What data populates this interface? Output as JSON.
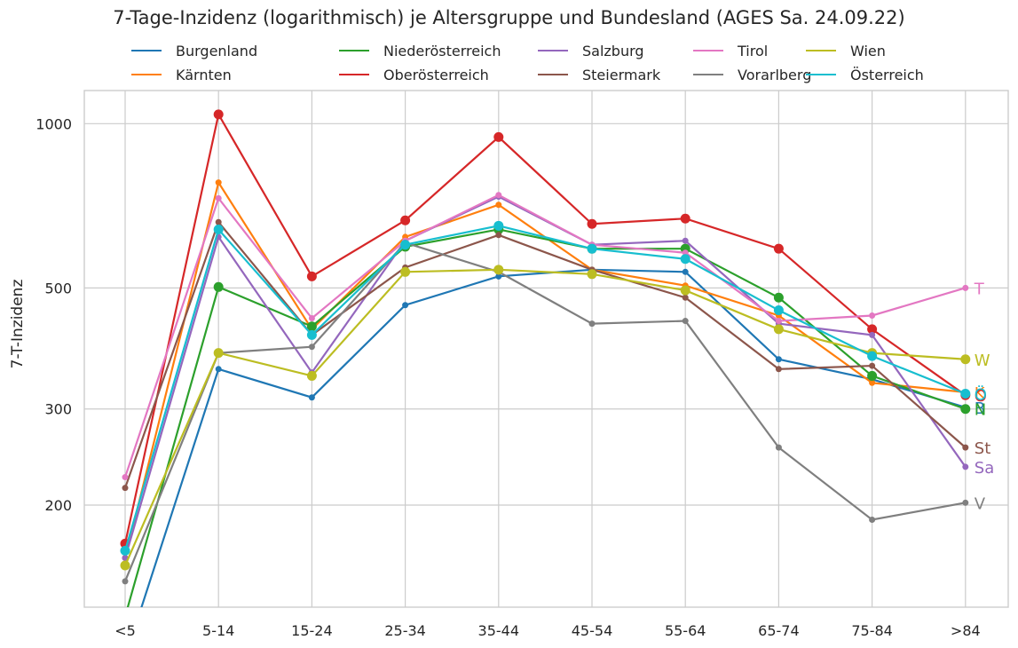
{
  "chart_data": {
    "type": "line",
    "title": "7-Tage-Inzidenz (logarithmisch) je Altersgruppe und Bundesland (AGES Sa. 24.09.22)",
    "ylabel": "7-T-Inzidenz",
    "xlabel": "",
    "yscale": "log",
    "ylim": [
      130,
      1150
    ],
    "yticks": [
      200,
      300,
      500,
      1000
    ],
    "grid": true,
    "legend_placement": "top",
    "categories": [
      "<5",
      "5-14",
      "15-24",
      "25-34",
      "35-44",
      "45-54",
      "55-64",
      "65-74",
      "75-84",
      ">84"
    ],
    "series": [
      {
        "name": "Burgenland",
        "color": "#1f77b4",
        "end_label": "B",
        "marker": "small",
        "values": [
          105,
          355,
          315,
          465,
          525,
          540,
          535,
          370,
          340,
          302
        ]
      },
      {
        "name": "Kärnten",
        "color": "#ff7f0e",
        "end_label": "K",
        "marker": "small",
        "values": [
          160,
          780,
          420,
          620,
          710,
          540,
          505,
          445,
          335,
          322
        ]
      },
      {
        "name": "Niederösterreich",
        "color": "#2ca02c",
        "end_label": "N",
        "marker": "large",
        "values": [
          125,
          502,
          425,
          595,
          640,
          590,
          590,
          480,
          345,
          300
        ]
      },
      {
        "name": "Oberösterreich",
        "color": "#d62728",
        "end_label": "O",
        "marker": "large",
        "values": [
          170,
          1040,
          525,
          665,
          945,
          655,
          670,
          590,
          420,
          318
        ]
      },
      {
        "name": "Salzburg",
        "color": "#9467bd",
        "end_label": "Sa",
        "marker": "small",
        "values": [
          160,
          620,
          350,
          610,
          735,
          600,
          610,
          430,
          410,
          235
        ]
      },
      {
        "name": "Steiermark",
        "color": "#8c564b",
        "end_label": "St",
        "marker": "small",
        "values": [
          215,
          660,
          410,
          545,
          625,
          540,
          480,
          355,
          360,
          255
        ]
      },
      {
        "name": "Tirol",
        "color": "#e377c2",
        "end_label": "T",
        "marker": "small",
        "values": [
          225,
          730,
          440,
          610,
          740,
          600,
          580,
          435,
          445,
          500
        ]
      },
      {
        "name": "Vorarlberg",
        "color": "#7f7f7f",
        "end_label": "V",
        "marker": "small",
        "values": [
          145,
          380,
          390,
          605,
          535,
          430,
          435,
          255,
          188,
          202
        ]
      },
      {
        "name": "Wien",
        "color": "#bcbd22",
        "end_label": "W",
        "marker": "large",
        "values": [
          155,
          380,
          345,
          535,
          540,
          530,
          495,
          420,
          380,
          370
        ]
      },
      {
        "name": "Österreich",
        "color": "#17becf",
        "end_label": "Ö",
        "marker": "large",
        "values": [
          165,
          640,
          410,
          600,
          650,
          590,
          565,
          455,
          375,
          320
        ]
      }
    ]
  }
}
